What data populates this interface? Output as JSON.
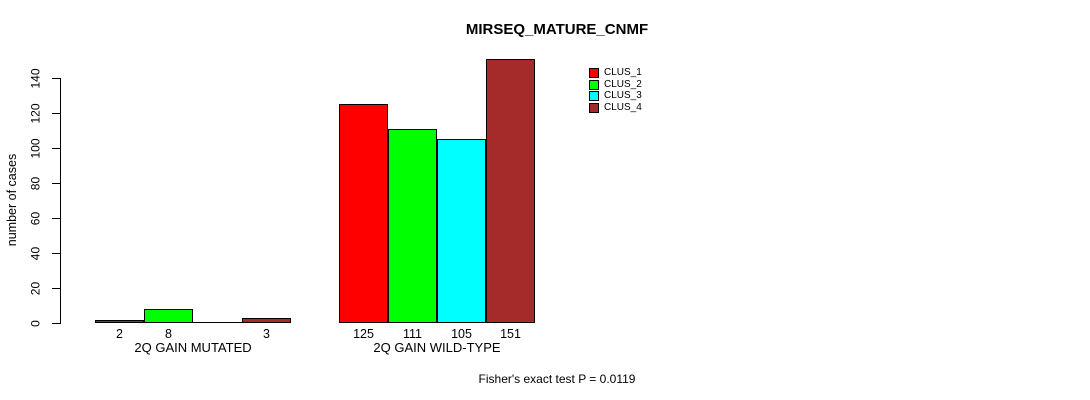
{
  "chart_data": {
    "type": "bar",
    "title": "MIRSEQ_MATURE_CNMF",
    "ylabel": "number of cases",
    "xlabel": "",
    "categories": [
      "2Q GAIN MUTATED",
      "2Q GAIN WILD-TYPE"
    ],
    "series": [
      {
        "name": "CLUS_1",
        "color": "#ff0000",
        "values": [
          2,
          125
        ]
      },
      {
        "name": "CLUS_2",
        "color": "#00ff00",
        "values": [
          8,
          111
        ]
      },
      {
        "name": "CLUS_3",
        "color": "#00ffff",
        "values": [
          0,
          105
        ]
      },
      {
        "name": "CLUS_4",
        "color": "#a52a2a",
        "values": [
          3,
          151
        ]
      }
    ],
    "bar_value_labels": [
      [
        "2",
        "8",
        "",
        "3"
      ],
      [
        "125",
        "111",
        "105",
        "151"
      ]
    ],
    "yticks": [
      0,
      20,
      40,
      60,
      80,
      100,
      120,
      140
    ],
    "ylim": [
      0,
      140
    ],
    "grid": false,
    "legend_position": "top-right",
    "bar_border_color": "#000000",
    "background_color": "#ffffff",
    "annotation": "Fisher's exact test P = 0.0119"
  }
}
